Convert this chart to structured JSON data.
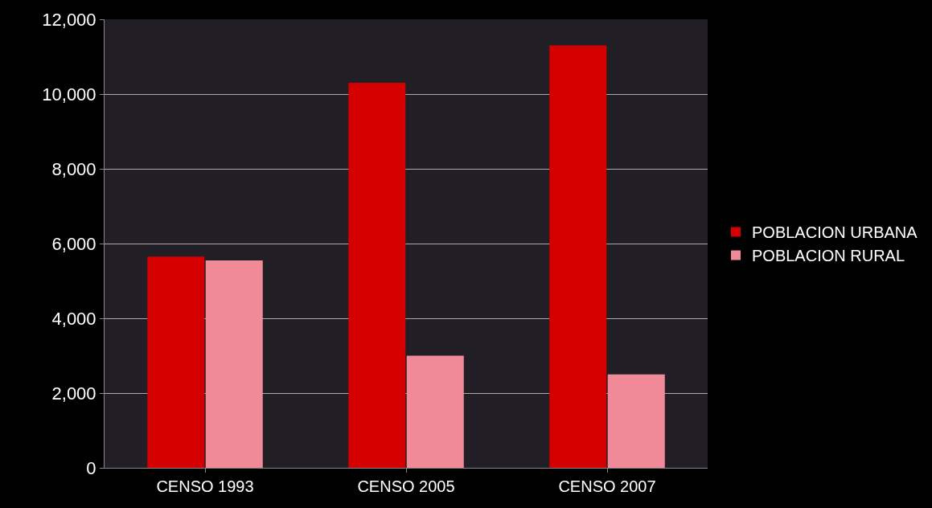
{
  "chart_data": {
    "type": "bar",
    "categories": [
      "CENSO 1993",
      "CENSO 2005",
      "CENSO 2007"
    ],
    "series": [
      {
        "name": "POBLACION URBANA",
        "color": "#d40000",
        "values": [
          5650,
          10300,
          11300
        ]
      },
      {
        "name": "POBLACION RURAL",
        "color": "#f08a98",
        "values": [
          5550,
          3000,
          2500
        ]
      }
    ],
    "ylim": [
      0,
      12000
    ],
    "yticks": [
      {
        "value": 0,
        "label": "0"
      },
      {
        "value": 2000,
        "label": "2,000"
      },
      {
        "value": 4000,
        "label": "4,000"
      },
      {
        "value": 6000,
        "label": "6,000"
      },
      {
        "value": 8000,
        "label": "8,000"
      },
      {
        "value": 10000,
        "label": "10,000"
      },
      {
        "value": 12000,
        "label": "12,000"
      }
    ],
    "grid": "y",
    "legend": "right"
  }
}
